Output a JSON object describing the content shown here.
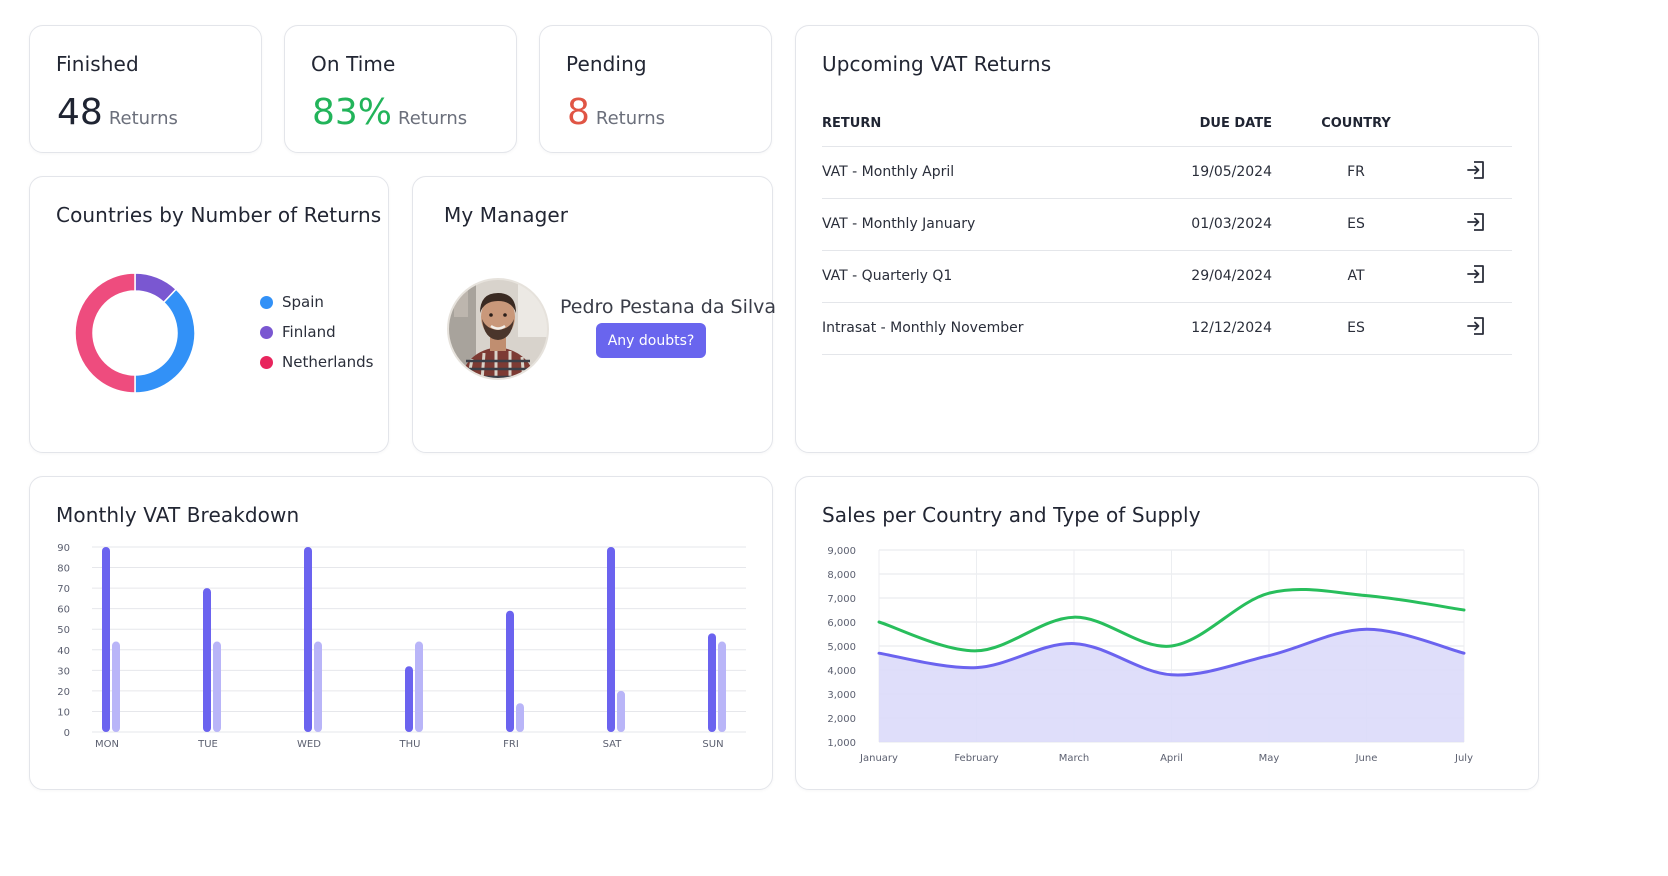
{
  "stats": [
    {
      "label": "Finished",
      "value": "48",
      "unit": "Returns",
      "color": "#1f2432"
    },
    {
      "label": "On Time",
      "value": "83%",
      "unit": "Returns",
      "color": "#22b45a"
    },
    {
      "label": "Pending",
      "value": "8",
      "unit": "Returns",
      "color": "#e05545"
    }
  ],
  "countries": {
    "title": "Countries by Number of Returns",
    "legend": [
      {
        "name": "Spain",
        "color": "#3291f7"
      },
      {
        "name": "Finland",
        "color": "#7a57d1"
      },
      {
        "name": "Netherlands",
        "color": "#e8255d"
      }
    ],
    "donut_colors": [
      "#7a57d1",
      "#3291f7",
      "#ee4c7e"
    ],
    "donut_values": [
      12,
      38,
      50
    ]
  },
  "manager": {
    "title": "My Manager",
    "name": "Pedro Pestana da Silva",
    "button": "Any doubts?"
  },
  "upcoming": {
    "title": "Upcoming VAT Returns",
    "headers": {
      "return": "RETURN",
      "due_date": "DUE DATE",
      "country": "COUNTRY"
    },
    "rows": [
      {
        "return": "VAT - Monthly April",
        "due_date": "19/05/2024",
        "country": "FR"
      },
      {
        "return": "VAT - Monthly January",
        "due_date": "01/03/2024",
        "country": "ES"
      },
      {
        "return": "VAT - Quarterly Q1",
        "due_date": "29/04/2024",
        "country": "AT"
      },
      {
        "return": "Intrasat - Monthly November",
        "due_date": "12/12/2024",
        "country": "ES"
      }
    ],
    "row_icon": "open-return-icon"
  },
  "monthly": {
    "title": "Monthly VAT Breakdown"
  },
  "sales": {
    "title": "Sales per Country and Type of Supply"
  },
  "chart_data": [
    {
      "type": "bar",
      "categories": [
        "MON",
        "TUE",
        "WED",
        "THU",
        "FRI",
        "SAT",
        "SUN"
      ],
      "series": [
        {
          "values": [
            90,
            70,
            90,
            32,
            59,
            90,
            48
          ],
          "color": "#6b63ef"
        },
        {
          "values": [
            44,
            44,
            44,
            44,
            14,
            20,
            44
          ],
          "color": "#b9b5f8"
        }
      ],
      "ylim": [
        0,
        90
      ],
      "yticks": [
        0,
        10,
        20,
        30,
        40,
        50,
        60,
        70,
        80,
        90
      ],
      "grid": true
    },
    {
      "type": "line",
      "categories": [
        "January",
        "February",
        "March",
        "April",
        "May",
        "June",
        "July"
      ],
      "series": [
        {
          "values": [
            6000,
            4800,
            6200,
            5000,
            7200,
            7100,
            6500
          ],
          "color": "#28be5c"
        },
        {
          "values": [
            4700,
            4100,
            5100,
            3800,
            4600,
            5700,
            4700
          ],
          "color": "#6b63ef",
          "fill": "#dcdafa"
        }
      ],
      "ylim": [
        1000,
        9000
      ],
      "yticks": [
        "1,000",
        "2,000",
        "3,000",
        "4,000",
        "5,000",
        "6,000",
        "7,000",
        "8,000",
        "9,000"
      ],
      "grid": true
    }
  ]
}
